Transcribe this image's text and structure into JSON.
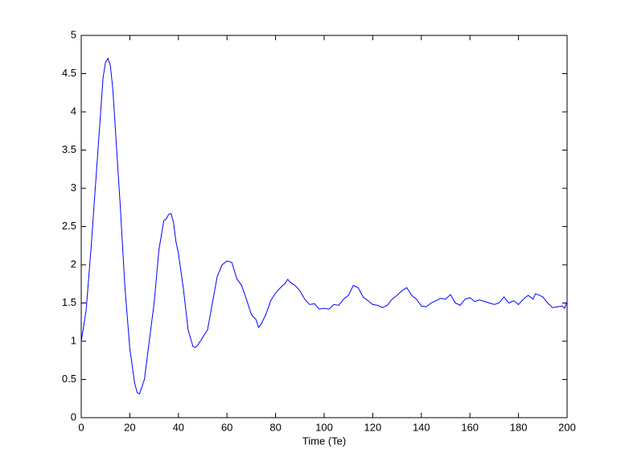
{
  "chart_data": {
    "type": "line",
    "x_label": "Time (Te)",
    "x": [
      0,
      2,
      4,
      6,
      8,
      9,
      10,
      11,
      12,
      13,
      14,
      16,
      18,
      20,
      22,
      23,
      24,
      26,
      28,
      30,
      32,
      34,
      35,
      36,
      37,
      38,
      39,
      40,
      42,
      44,
      46,
      47,
      48,
      50,
      52,
      54,
      56,
      58,
      60,
      62,
      64,
      66,
      68,
      70,
      72,
      73,
      74,
      76,
      78,
      80,
      82,
      84,
      85,
      86,
      88,
      90,
      92,
      94,
      96,
      98,
      100,
      102,
      104,
      106,
      108,
      110,
      112,
      114,
      116,
      118,
      120,
      122,
      124,
      126,
      128,
      130,
      132,
      134,
      136,
      138,
      140,
      142,
      144,
      146,
      148,
      150,
      152,
      154,
      156,
      158,
      160,
      162,
      164,
      166,
      168,
      170,
      172,
      174,
      176,
      178,
      180,
      182,
      184,
      186,
      187,
      188,
      190,
      192,
      194,
      196,
      198,
      199,
      200
    ],
    "series": [
      {
        "color": "#0000ff",
        "values": [
          1.0,
          1.4,
          2.2,
          3.1,
          4.0,
          4.45,
          4.65,
          4.7,
          4.6,
          4.3,
          3.8,
          2.8,
          1.7,
          0.9,
          0.45,
          0.33,
          0.31,
          0.5,
          1.0,
          1.5,
          2.2,
          2.58,
          2.6,
          2.66,
          2.67,
          2.55,
          2.3,
          2.15,
          1.7,
          1.15,
          0.93,
          0.92,
          0.95,
          1.05,
          1.15,
          1.5,
          1.85,
          2.0,
          2.05,
          2.03,
          1.82,
          1.73,
          1.55,
          1.35,
          1.28,
          1.18,
          1.22,
          1.35,
          1.53,
          1.63,
          1.7,
          1.76,
          1.81,
          1.77,
          1.73,
          1.66,
          1.55,
          1.48,
          1.49,
          1.42,
          1.43,
          1.42,
          1.48,
          1.47,
          1.55,
          1.6,
          1.73,
          1.7,
          1.58,
          1.53,
          1.48,
          1.47,
          1.44,
          1.47,
          1.55,
          1.6,
          1.66,
          1.7,
          1.6,
          1.55,
          1.46,
          1.45,
          1.5,
          1.53,
          1.56,
          1.55,
          1.61,
          1.5,
          1.47,
          1.55,
          1.57,
          1.52,
          1.54,
          1.52,
          1.5,
          1.48,
          1.5,
          1.58,
          1.5,
          1.53,
          1.48,
          1.55,
          1.6,
          1.55,
          1.62,
          1.61,
          1.58,
          1.5,
          1.44,
          1.45,
          1.46,
          1.43,
          1.52
        ]
      }
    ],
    "xlim": [
      0,
      200
    ],
    "xticks": [
      0,
      20,
      40,
      60,
      80,
      100,
      120,
      140,
      160,
      180,
      200
    ],
    "ylim": [
      0,
      5
    ],
    "yticks": [
      0,
      0.5,
      1,
      1.5,
      2,
      2.5,
      3,
      3.5,
      4,
      4.5,
      5
    ]
  }
}
